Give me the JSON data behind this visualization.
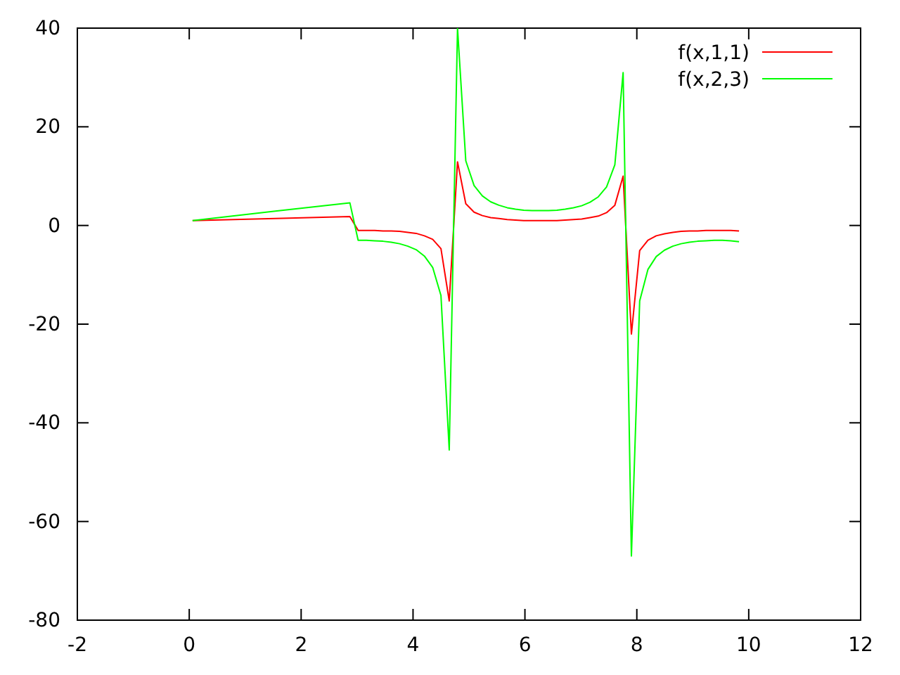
{
  "chart_data": {
    "type": "line",
    "x": [
      0.059,
      1.539,
      2.871,
      3.019,
      3.167,
      3.315,
      3.463,
      3.611,
      3.759,
      3.907,
      4.055,
      4.203,
      4.351,
      4.499,
      4.647,
      4.795,
      4.943,
      5.091,
      5.239,
      5.387,
      5.535,
      5.683,
      5.831,
      5.979,
      6.127,
      6.275,
      6.423,
      6.571,
      6.719,
      6.867,
      7.015,
      7.163,
      7.311,
      7.459,
      7.607,
      7.755,
      7.903,
      8.051,
      8.199,
      8.347,
      8.495,
      8.643,
      8.791,
      8.939,
      9.087,
      9.235,
      9.383,
      9.531,
      9.679,
      9.827
    ],
    "series": [
      {
        "name": "f(x,1,1)",
        "color": "#ff0000",
        "values": [
          1.0,
          1.4,
          1.8,
          -1.0,
          -1.0,
          -1.0,
          -1.1,
          -1.1,
          -1.2,
          -1.4,
          -1.6,
          -2.1,
          -2.8,
          -4.7,
          -15.3,
          12.9,
          4.4,
          2.7,
          2.0,
          1.6,
          1.4,
          1.2,
          1.1,
          1.0,
          1.0,
          1.0,
          1.0,
          1.0,
          1.1,
          1.2,
          1.3,
          1.6,
          1.9,
          2.6,
          4.1,
          10.0,
          -22.0,
          -5.1,
          -3.0,
          -2.1,
          -1.7,
          -1.4,
          -1.2,
          -1.1,
          -1.1,
          -1.0,
          -1.0,
          -1.0,
          -1.0,
          -1.1
        ]
      },
      {
        "name": "f(x,2,3)",
        "color": "#00ff00",
        "values": [
          1.0,
          2.9,
          4.6,
          -3.0,
          -3.0,
          -3.1,
          -3.2,
          -3.4,
          -3.7,
          -4.2,
          -4.9,
          -6.2,
          -8.5,
          -14.2,
          -45.5,
          40.0,
          13.1,
          8.1,
          6.0,
          4.8,
          4.1,
          3.6,
          3.3,
          3.1,
          3.0,
          3.0,
          3.0,
          3.1,
          3.3,
          3.6,
          4.0,
          4.7,
          5.8,
          7.8,
          12.3,
          31.0,
          -67.0,
          -15.3,
          -8.9,
          -6.3,
          -5.0,
          -4.2,
          -3.7,
          -3.4,
          -3.2,
          -3.1,
          -3.0,
          -3.0,
          -3.1,
          -3.3
        ]
      }
    ],
    "xlim": [
      -2,
      12
    ],
    "xticks": [
      -2,
      0,
      2,
      4,
      6,
      8,
      10,
      12
    ],
    "ylim": [
      -80,
      40
    ],
    "yticks": [
      -80,
      -60,
      -40,
      -20,
      0,
      20,
      40
    ],
    "legend": "top right"
  }
}
